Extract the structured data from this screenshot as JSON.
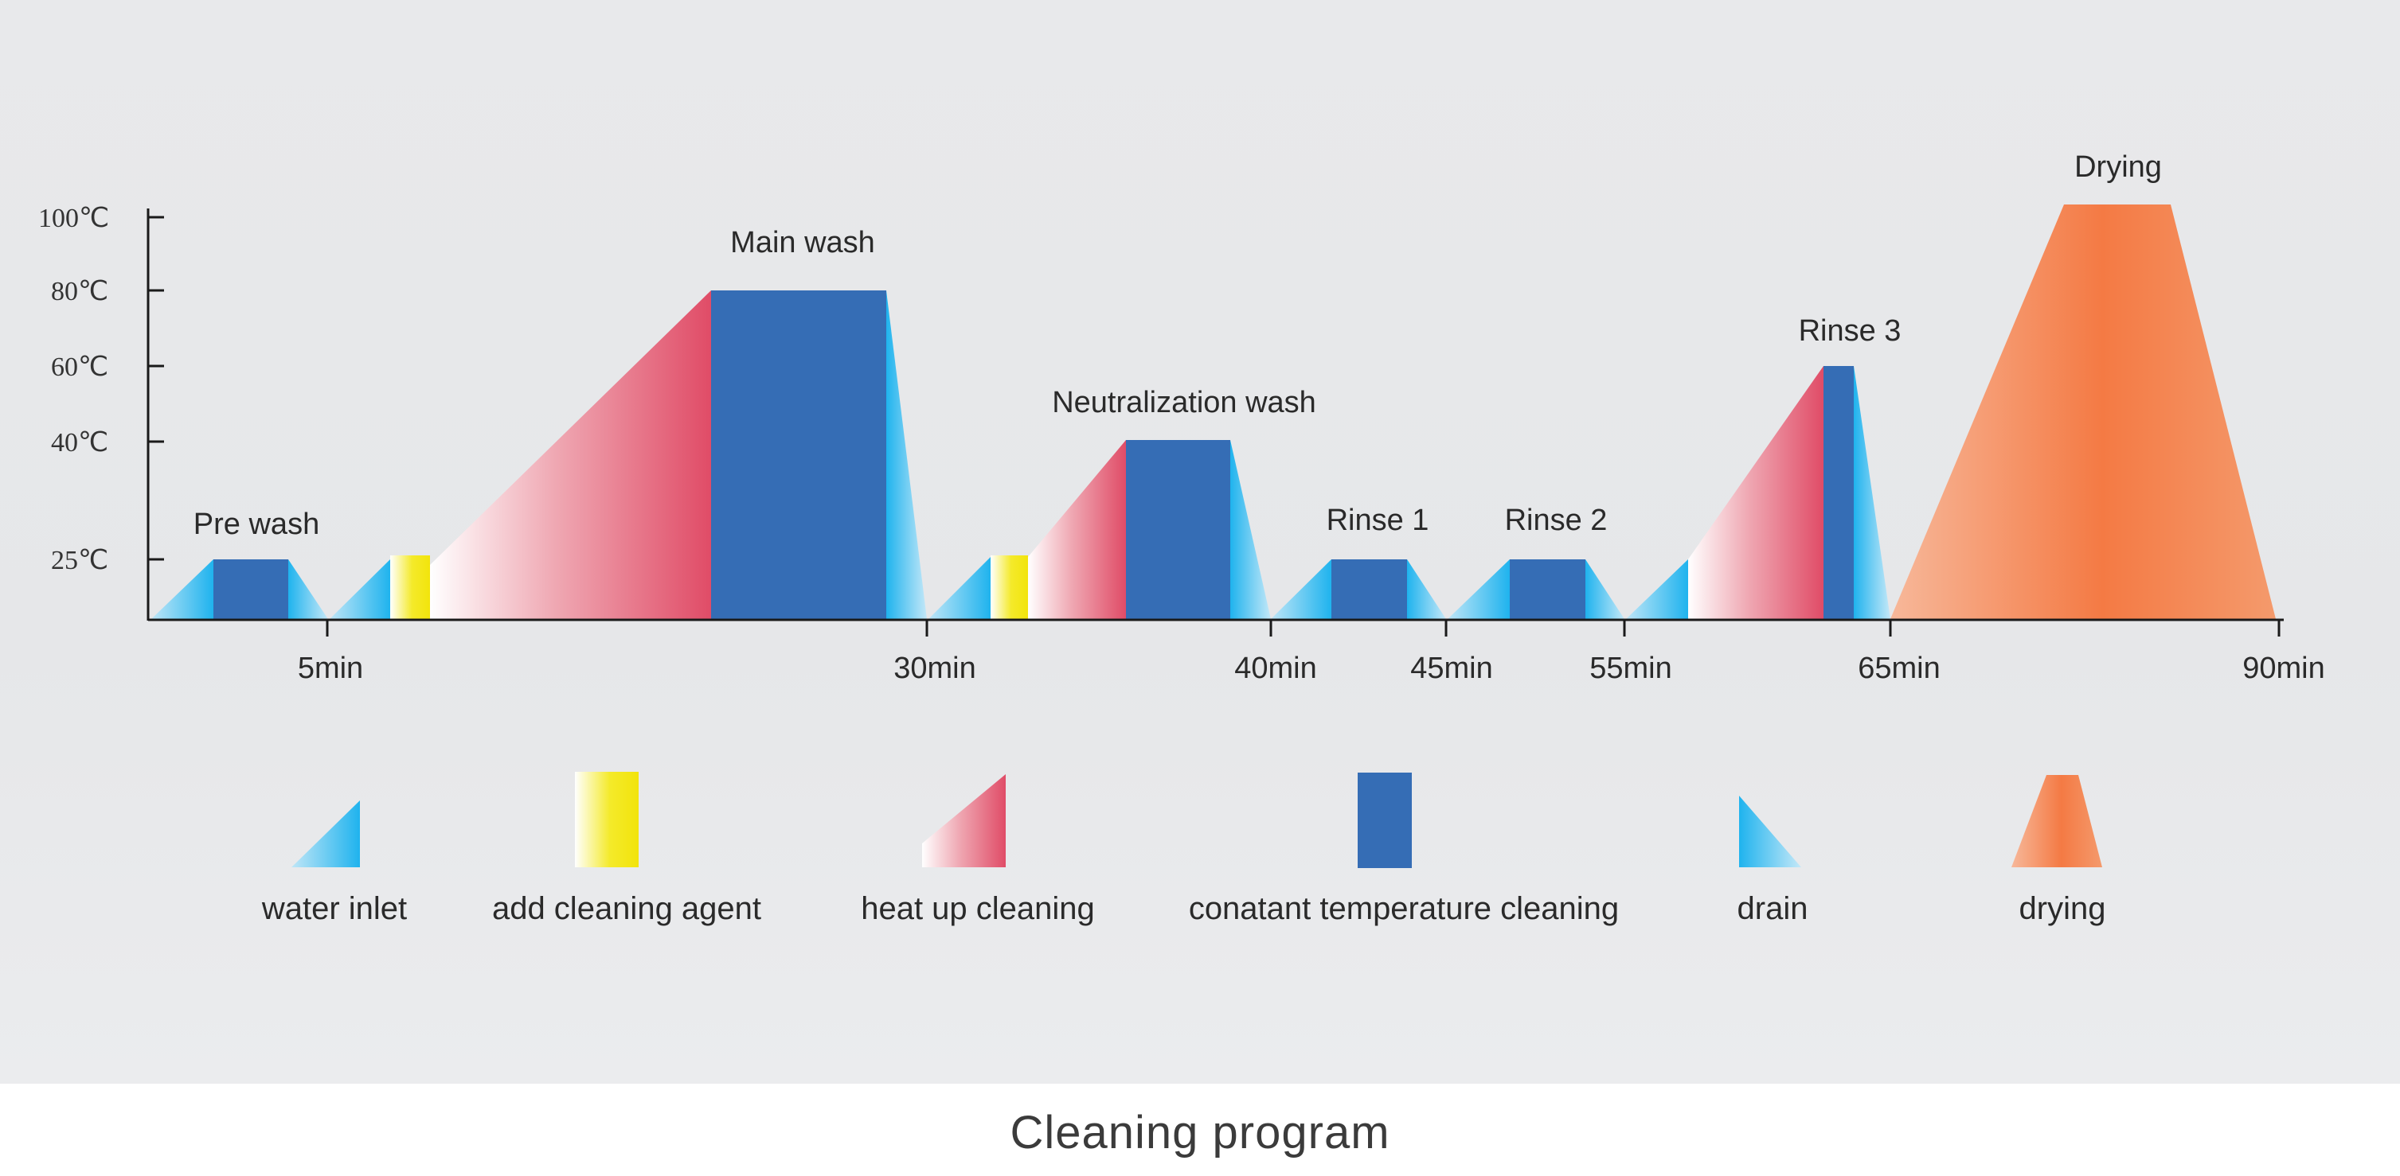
{
  "caption": "Cleaning program",
  "diagram": {
    "y_ticks": [
      {
        "value": 100,
        "label": "100℃"
      },
      {
        "value": 80,
        "label": "80℃"
      },
      {
        "value": 60,
        "label": "60℃"
      },
      {
        "value": 40,
        "label": "40℃"
      },
      {
        "value": 25,
        "label": "25℃"
      }
    ],
    "x_ticks": [
      {
        "value": 5,
        "label": "5min"
      },
      {
        "value": 30,
        "label": "30min"
      },
      {
        "value": 40,
        "label": "40min"
      },
      {
        "value": 45,
        "label": "45min"
      },
      {
        "value": 55,
        "label": "55min"
      },
      {
        "value": 65,
        "label": "65min"
      },
      {
        "value": 90,
        "label": "90min"
      }
    ],
    "phases": [
      {
        "label": "Pre wash"
      },
      {
        "label": "Main wash"
      },
      {
        "label": "Neutralization wash"
      },
      {
        "label": "Rinse 1"
      },
      {
        "label": "Rinse 2"
      },
      {
        "label": "Rinse 3"
      },
      {
        "label": "Drying"
      }
    ],
    "legend": [
      {
        "key": "water_inlet",
        "label": "water inlet",
        "color": "#29b6ef"
      },
      {
        "key": "add_agent",
        "label": "add cleaning agent",
        "color": "#f3e81a"
      },
      {
        "key": "heat_up",
        "label": "heat up cleaning",
        "color": "#e2536c"
      },
      {
        "key": "constant",
        "label": "conatant temperature cleaning",
        "color": "#356db5"
      },
      {
        "key": "drain",
        "label": "drain",
        "color": "#29b6ef"
      },
      {
        "key": "drying",
        "label": "drying",
        "color": "#f47c45"
      }
    ]
  }
}
